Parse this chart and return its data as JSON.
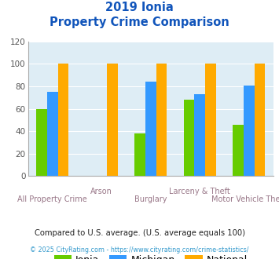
{
  "title_line1": "2019 Ionia",
  "title_line2": "Property Crime Comparison",
  "categories": [
    "All Property Crime",
    "Arson",
    "Burglary",
    "Larceny & Theft",
    "Motor Vehicle Theft"
  ],
  "cat_label_row1": [
    "",
    "Arson",
    "",
    "Larceny & Theft",
    ""
  ],
  "cat_label_row2": [
    "All Property Crime",
    "",
    "Burglary",
    "",
    "Motor Vehicle Theft"
  ],
  "series": {
    "Ionia": [
      60,
      0,
      38,
      68,
      46
    ],
    "Michigan": [
      75,
      0,
      84,
      73,
      81
    ],
    "National": [
      100,
      100,
      100,
      100,
      100
    ]
  },
  "colors": {
    "Ionia": "#66cc00",
    "Michigan": "#3399ff",
    "National": "#ffaa00"
  },
  "ylim": [
    0,
    120
  ],
  "yticks": [
    0,
    20,
    40,
    60,
    80,
    100,
    120
  ],
  "footnote1": "Compared to U.S. average. (U.S. average equals 100)",
  "footnote2": "© 2025 CityRating.com - https://www.cityrating.com/crime-statistics/",
  "title_color": "#1155bb",
  "footnote1_color": "#222222",
  "footnote2_color": "#3399cc",
  "bg_color": "#deedf5",
  "grid_color": "#ffffff"
}
